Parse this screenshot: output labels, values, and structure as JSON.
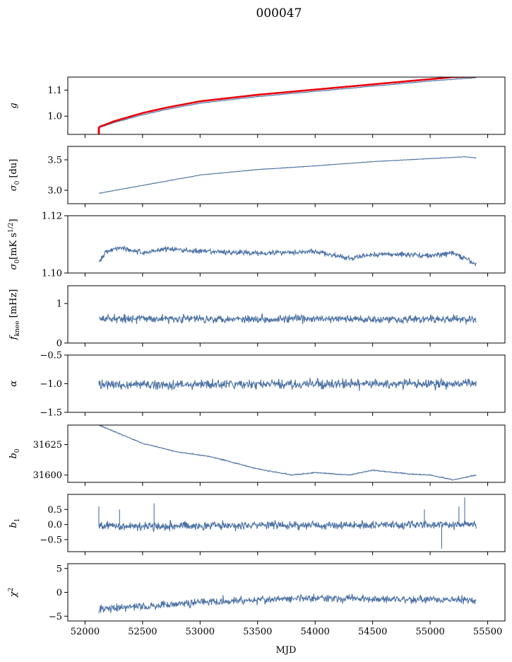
{
  "figure_title": "000047",
  "colors": {
    "series": "#4c72a4",
    "reference": "#e8000b",
    "frame": "#000000"
  },
  "chart_data": [
    {
      "type": "line",
      "ylabel": "g",
      "xlabel": "",
      "xlim": [
        51850,
        55650
      ],
      "ylim": [
        0.93,
        1.15
      ],
      "yticks": [
        1.0,
        1.1
      ],
      "ytick_labels": [
        "1.0",
        "1.1"
      ],
      "series_style": "trend",
      "trend": [
        [
          52120,
          0.955
        ],
        [
          52250,
          0.975
        ],
        [
          52500,
          1.005
        ],
        [
          52700,
          1.025
        ],
        [
          53000,
          1.05
        ],
        [
          53500,
          1.075
        ],
        [
          54000,
          1.095
        ],
        [
          54500,
          1.115
        ],
        [
          55000,
          1.135
        ],
        [
          55400,
          1.148
        ]
      ],
      "noise": 0.001,
      "red_series": {
        "trend": [
          [
            52120,
            0.958
          ],
          [
            52250,
            0.98
          ],
          [
            52500,
            1.012
          ],
          [
            52700,
            1.032
          ],
          [
            53000,
            1.057
          ],
          [
            53500,
            1.082
          ],
          [
            54000,
            1.102
          ],
          [
            54500,
            1.122
          ],
          [
            55000,
            1.142
          ],
          [
            55200,
            1.15
          ],
          [
            55400,
            1.152
          ]
        ],
        "spike_x": 52120,
        "spike_y": [
          0.93,
          0.958
        ]
      }
    },
    {
      "type": "line",
      "ylabel": "σ0 [du]",
      "xlabel": "",
      "xlim": [
        51850,
        55650
      ],
      "ylim": [
        2.78,
        3.72
      ],
      "yticks": [
        3.0,
        3.5
      ],
      "ytick_labels": [
        "3.0",
        "3.5"
      ],
      "series_style": "trend",
      "trend": [
        [
          52120,
          2.95
        ],
        [
          52500,
          3.08
        ],
        [
          53000,
          3.25
        ],
        [
          53500,
          3.34
        ],
        [
          54000,
          3.4
        ],
        [
          54500,
          3.47
        ],
        [
          55000,
          3.52
        ],
        [
          55300,
          3.55
        ],
        [
          55400,
          3.53
        ]
      ],
      "noise": 0.004
    },
    {
      "type": "line",
      "ylabel": "σ0[mK s^1/2]",
      "xlabel": "",
      "xlim": [
        51850,
        55650
      ],
      "ylim": [
        1.1,
        1.12
      ],
      "yticks": [
        1.1,
        1.12
      ],
      "ytick_labels": [
        "1.10",
        "1.12"
      ],
      "series_style": "noise",
      "trend": [
        [
          52120,
          1.1035
        ],
        [
          52180,
          1.1075
        ],
        [
          52300,
          1.109
        ],
        [
          52500,
          1.107
        ],
        [
          52700,
          1.1085
        ],
        [
          53000,
          1.1075
        ],
        [
          53500,
          1.107
        ],
        [
          54000,
          1.1075
        ],
        [
          54300,
          1.105
        ],
        [
          54500,
          1.1065
        ],
        [
          54800,
          1.1065
        ],
        [
          55000,
          1.106
        ],
        [
          55200,
          1.107
        ],
        [
          55400,
          1.103
        ]
      ],
      "noise": 0.0009
    },
    {
      "type": "line",
      "ylabel": "f_knee [mHz]",
      "xlabel": "",
      "xlim": [
        51850,
        55650
      ],
      "ylim": [
        0.0,
        1.45
      ],
      "yticks": [
        0,
        1
      ],
      "ytick_labels": [
        "0",
        "1"
      ],
      "series_style": "noise",
      "trend": [
        [
          52120,
          0.62
        ],
        [
          55400,
          0.6
        ]
      ],
      "noise": 0.1
    },
    {
      "type": "line",
      "ylabel": "α",
      "xlabel": "",
      "xlim": [
        51850,
        55650
      ],
      "ylim": [
        -1.5,
        -0.5
      ],
      "yticks": [
        -1.5,
        -1.0,
        -0.5
      ],
      "ytick_labels": [
        "−1.5",
        "−1.0",
        "−0.5"
      ],
      "series_style": "noise",
      "trend": [
        [
          52120,
          -1.02
        ],
        [
          55400,
          -1.0
        ]
      ],
      "noise": 0.08
    },
    {
      "type": "line",
      "ylabel": "b0",
      "xlabel": "",
      "xlim": [
        51850,
        55650
      ],
      "ylim": [
        31594,
        31641
      ],
      "yticks": [
        31600,
        31625
      ],
      "ytick_labels": [
        "31600",
        "31625"
      ],
      "series_style": "trend",
      "trend": [
        [
          52120,
          31641
        ],
        [
          52300,
          31634
        ],
        [
          52500,
          31626
        ],
        [
          52800,
          31619
        ],
        [
          53100,
          31615
        ],
        [
          53500,
          31605
        ],
        [
          53800,
          31600
        ],
        [
          54000,
          31602
        ],
        [
          54300,
          31600
        ],
        [
          54500,
          31604
        ],
        [
          54800,
          31601
        ],
        [
          55000,
          31600
        ],
        [
          55200,
          31596
        ],
        [
          55400,
          31600
        ]
      ],
      "noise": 0.4
    },
    {
      "type": "line",
      "ylabel": "b1",
      "xlabel": "",
      "xlim": [
        51850,
        55650
      ],
      "ylim": [
        -0.9,
        1.0
      ],
      "yticks": [
        -0.5,
        0.0,
        0.5
      ],
      "ytick_labels": [
        "−0.5",
        "0.0",
        "0.5"
      ],
      "series_style": "noise",
      "trend": [
        [
          52120,
          -0.05
        ],
        [
          55400,
          0.0
        ]
      ],
      "noise": 0.14,
      "spikes": [
        [
          52120,
          0.6
        ],
        [
          52300,
          0.5
        ],
        [
          52600,
          0.7
        ],
        [
          54950,
          0.5
        ],
        [
          55100,
          -0.8
        ],
        [
          55250,
          0.6
        ],
        [
          55300,
          0.9
        ]
      ]
    },
    {
      "type": "line",
      "ylabel": "χ²",
      "xlabel": "MJD",
      "xlim": [
        51850,
        55650
      ],
      "ylim": [
        -6,
        6
      ],
      "yticks": [
        -5,
        0,
        5
      ],
      "ytick_labels": [
        "−5",
        "0",
        "5"
      ],
      "xticks": [
        52000,
        52500,
        53000,
        53500,
        54000,
        54500,
        55000,
        55500
      ],
      "xtick_labels": [
        "52000",
        "52500",
        "53000",
        "53500",
        "54000",
        "54500",
        "55000",
        "55500"
      ],
      "series_style": "noise",
      "trend": [
        [
          52120,
          -3.5
        ],
        [
          52500,
          -3.0
        ],
        [
          53000,
          -2.0
        ],
        [
          53500,
          -1.6
        ],
        [
          54000,
          -1.2
        ],
        [
          55000,
          -1.5
        ],
        [
          55400,
          -1.6
        ]
      ],
      "noise": 0.8
    }
  ]
}
